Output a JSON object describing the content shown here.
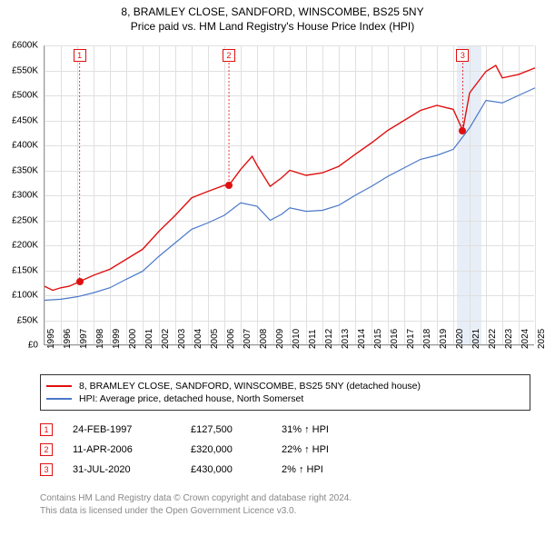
{
  "title": "8, BRAMLEY CLOSE, SANDFORD, WINSCOMBE, BS25 5NY",
  "subtitle": "Price paid vs. HM Land Registry's House Price Index (HPI)",
  "chart": {
    "type": "line",
    "x_min": 1995,
    "x_max": 2025,
    "y_min": 0,
    "y_max": 600000,
    "y_ticks": [
      0,
      50000,
      100000,
      150000,
      200000,
      250000,
      300000,
      350000,
      400000,
      450000,
      500000,
      550000,
      600000
    ],
    "y_labels": [
      "£0",
      "£50K",
      "£100K",
      "£150K",
      "£200K",
      "£250K",
      "£300K",
      "£350K",
      "£400K",
      "£450K",
      "£500K",
      "£550K",
      "£600K"
    ],
    "x_ticks": [
      1995,
      1996,
      1997,
      1998,
      1999,
      2000,
      2001,
      2002,
      2003,
      2004,
      2005,
      2006,
      2007,
      2008,
      2009,
      2010,
      2011,
      2012,
      2013,
      2014,
      2015,
      2016,
      2017,
      2018,
      2019,
      2020,
      2021,
      2022,
      2023,
      2024,
      2025
    ],
    "background_color": "#ffffff",
    "grid_color": "#e0e0e0",
    "highlight_band_color": "#e8eef7",
    "highlight_band_x": [
      2020.2,
      2021.7
    ],
    "series": {
      "property": {
        "label": "8, BRAMLEY CLOSE, SANDFORD, WINSCOMBE, BS25 5NY (detached house)",
        "color": "#e01010",
        "width": 1.4,
        "points": [
          [
            1995,
            118000
          ],
          [
            1995.5,
            110000
          ],
          [
            1996,
            115000
          ],
          [
            1996.5,
            118000
          ],
          [
            1997,
            125000
          ],
          [
            1997.15,
            127500
          ],
          [
            1998,
            140000
          ],
          [
            1999,
            152000
          ],
          [
            2000,
            172000
          ],
          [
            2001,
            192000
          ],
          [
            2002,
            228000
          ],
          [
            2003,
            260000
          ],
          [
            2004,
            295000
          ],
          [
            2005,
            308000
          ],
          [
            2006,
            320000
          ],
          [
            2006.28,
            320000
          ],
          [
            2007,
            352000
          ],
          [
            2007.7,
            378000
          ],
          [
            2008,
            360000
          ],
          [
            2008.8,
            318000
          ],
          [
            2009.5,
            335000
          ],
          [
            2010,
            350000
          ],
          [
            2011,
            340000
          ],
          [
            2012,
            345000
          ],
          [
            2013,
            358000
          ],
          [
            2014,
            382000
          ],
          [
            2015,
            405000
          ],
          [
            2016,
            430000
          ],
          [
            2017,
            450000
          ],
          [
            2018,
            470000
          ],
          [
            2019,
            480000
          ],
          [
            2020,
            472000
          ],
          [
            2020.58,
            430000
          ],
          [
            2021,
            505000
          ],
          [
            2022,
            548000
          ],
          [
            2022.6,
            560000
          ],
          [
            2023,
            535000
          ],
          [
            2024,
            542000
          ],
          [
            2025,
            555000
          ]
        ]
      },
      "hpi": {
        "label": "HPI: Average price, detached house, North Somerset",
        "color": "#4a78c8",
        "width": 1.2,
        "points": [
          [
            1995,
            90000
          ],
          [
            1996,
            92000
          ],
          [
            1997,
            97000
          ],
          [
            1998,
            105000
          ],
          [
            1999,
            115000
          ],
          [
            2000,
            132000
          ],
          [
            2001,
            148000
          ],
          [
            2002,
            178000
          ],
          [
            2003,
            205000
          ],
          [
            2004,
            232000
          ],
          [
            2005,
            245000
          ],
          [
            2006,
            260000
          ],
          [
            2007,
            285000
          ],
          [
            2008,
            278000
          ],
          [
            2008.8,
            250000
          ],
          [
            2009.5,
            262000
          ],
          [
            2010,
            275000
          ],
          [
            2011,
            268000
          ],
          [
            2012,
            270000
          ],
          [
            2013,
            280000
          ],
          [
            2014,
            300000
          ],
          [
            2015,
            318000
          ],
          [
            2016,
            338000
          ],
          [
            2017,
            355000
          ],
          [
            2018,
            372000
          ],
          [
            2019,
            380000
          ],
          [
            2020,
            392000
          ],
          [
            2021,
            435000
          ],
          [
            2022,
            490000
          ],
          [
            2023,
            485000
          ],
          [
            2024,
            500000
          ],
          [
            2025,
            515000
          ]
        ]
      }
    },
    "sale_markers": [
      {
        "n": "1",
        "x": 1997.15,
        "y": 127500,
        "box_y": 580000,
        "color": "#e01010"
      },
      {
        "n": "2",
        "x": 2006.28,
        "y": 320000,
        "box_y": 580000,
        "color": "#e01010"
      },
      {
        "n": "3",
        "x": 2020.58,
        "y": 430000,
        "box_y": 580000,
        "color": "#e01010"
      }
    ],
    "dot_color": "#e01010"
  },
  "legend": [
    {
      "color": "#e01010",
      "label": "8, BRAMLEY CLOSE, SANDFORD, WINSCOMBE, BS25 5NY (detached house)"
    },
    {
      "color": "#4a78c8",
      "label": "HPI: Average price, detached house, North Somerset"
    }
  ],
  "sales": [
    {
      "n": "1",
      "date": "24-FEB-1997",
      "price": "£127,500",
      "pct": "31% ↑ HPI",
      "color": "#e01010"
    },
    {
      "n": "2",
      "date": "11-APR-2006",
      "price": "£320,000",
      "pct": "22% ↑ HPI",
      "color": "#e01010"
    },
    {
      "n": "3",
      "date": "31-JUL-2020",
      "price": "£430,000",
      "pct": "2% ↑ HPI",
      "color": "#e01010"
    }
  ],
  "footer": {
    "line1": "Contains HM Land Registry data © Crown copyright and database right 2024.",
    "line2": "This data is licensed under the Open Government Licence v3.0."
  }
}
